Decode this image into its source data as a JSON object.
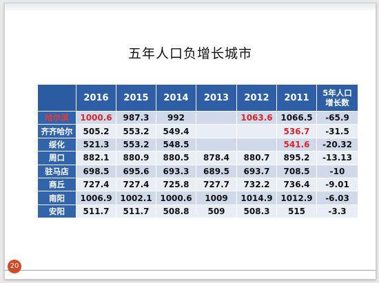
{
  "title": "五年人口负增长城市",
  "page_number": "20",
  "colors": {
    "header": "#2e5fa6",
    "highlight": "#d8262c"
  },
  "table": {
    "headers": [
      "",
      "2016",
      "2015",
      "2014",
      "2013",
      "2012",
      "2011"
    ],
    "growth_header_line1": "5年人口",
    "growth_header_line2": "增长数",
    "rows": [
      {
        "city": "哈尔滨",
        "v2016": "1000.6",
        "v2015": "987.3",
        "v2014": "992",
        "v2013": "",
        "v2012": "1063.6",
        "v2011": "1066.5",
        "growth": "-65.9"
      },
      {
        "city": "齐齐哈尔",
        "v2016": "505.2",
        "v2015": "553.2",
        "v2014": "549.4",
        "v2013": "",
        "v2012": "",
        "v2011": "536.7",
        "growth": "-31.5"
      },
      {
        "city": "绥化",
        "v2016": "521.3",
        "v2015": "553.2",
        "v2014": "548.5",
        "v2013": "",
        "v2012": "",
        "v2011": "541.6",
        "growth": "-20.32"
      },
      {
        "city": "周口",
        "v2016": "882.1",
        "v2015": "880.9",
        "v2014": "880.5",
        "v2013": "878.4",
        "v2012": "880.7",
        "v2011": "895.2",
        "growth": "-13.13"
      },
      {
        "city": "驻马店",
        "v2016": "698.5",
        "v2015": "695.6",
        "v2014": "693.3",
        "v2013": "689.5",
        "v2012": "693.7",
        "v2011": "708.5",
        "growth": "-10"
      },
      {
        "city": "商丘",
        "v2016": "727.4",
        "v2015": "727.4",
        "v2014": "725.8",
        "v2013": "727.7",
        "v2012": "732.2",
        "v2011": "736.4",
        "growth": "-9.01"
      },
      {
        "city": "南阳",
        "v2016": "1006.9",
        "v2015": "1002.1",
        "v2014": "1000.6",
        "v2013": "1009",
        "v2012": "1014.9",
        "v2011": "1012.9",
        "growth": "-6.03"
      },
      {
        "city": "安阳",
        "v2016": "511.7",
        "v2015": "511.7",
        "v2014": "508.8",
        "v2013": "509",
        "v2012": "508.3",
        "v2011": "515",
        "growth": "-3.3"
      }
    ]
  }
}
